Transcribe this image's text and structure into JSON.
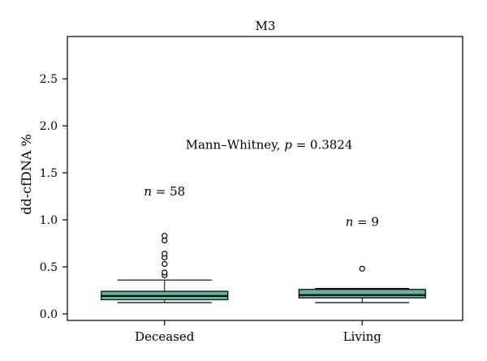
{
  "chart_data": {
    "type": "box",
    "title": "M3",
    "xlabel": "",
    "ylabel": "dd-cfDNA %",
    "ylim": [
      -0.07,
      2.95
    ],
    "y_ticks": [
      "0.0",
      "0.5",
      "1.0",
      "1.5",
      "2.0",
      "2.5"
    ],
    "y_tick_values": [
      0.0,
      0.5,
      1.0,
      1.5,
      2.0,
      2.5
    ],
    "categories": [
      "Deceased",
      "Living"
    ],
    "box_color": "#5fb5a0",
    "grid": false,
    "annotation": {
      "label": "Mann–Whitney, ",
      "p_symbol": "p",
      "p_value": " = 0.3824",
      "x": 1.5,
      "y": 1.8
    },
    "groups": [
      {
        "name": "Deceased",
        "n_symbol": "n",
        "n_label": " = 58",
        "n_label_y": 1.3,
        "whisker_low": 0.12,
        "q1": 0.15,
        "median": 0.19,
        "q3": 0.24,
        "whisker_high": 0.36,
        "outliers": [
          0.41,
          0.44,
          0.53,
          0.6,
          0.64,
          0.78,
          0.83
        ]
      },
      {
        "name": "Living",
        "n_symbol": "n",
        "n_label": " = 9",
        "n_label_y": 0.98,
        "whisker_low": 0.12,
        "q1": 0.17,
        "median": 0.2,
        "q3": 0.26,
        "whisker_high": 0.27,
        "outliers": [
          0.48
        ]
      }
    ]
  }
}
